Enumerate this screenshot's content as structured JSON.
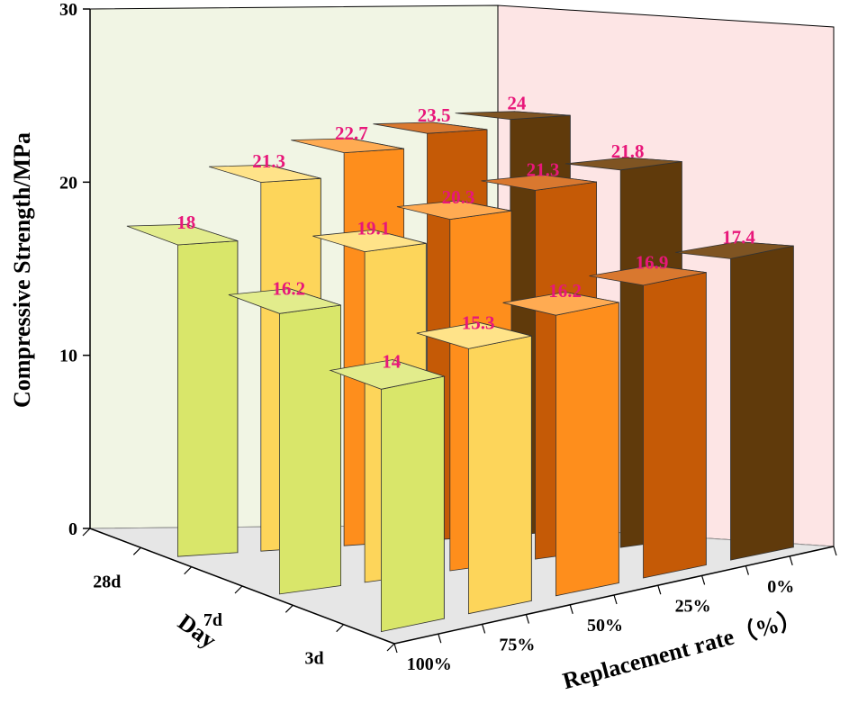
{
  "chart_data": {
    "type": "bar3d",
    "title": "",
    "zlabel": "Compressive Strength/MPa",
    "xlabel": "Replacement rate（%）",
    "ylabel": "Day",
    "zlim": [
      0,
      30
    ],
    "z_ticks": [
      "0",
      "10",
      "20",
      "30"
    ],
    "x_categories": [
      "100%",
      "75%",
      "50%",
      "25%",
      "0%"
    ],
    "y_categories": [
      "28d",
      "7d",
      "3d"
    ],
    "series": [
      {
        "name": "28d",
        "values": [
          18,
          21.3,
          22.7,
          23.5,
          24
        ],
        "labels": [
          "18",
          "21.3",
          "22.7",
          "23.5",
          "24"
        ]
      },
      {
        "name": "7d",
        "values": [
          16.2,
          19.1,
          20.3,
          21.3,
          21.8
        ],
        "labels": [
          "16.2",
          "19.1",
          "20.3",
          "21.3",
          "21.8"
        ]
      },
      {
        "name": "3d",
        "values": [
          14,
          15.3,
          16.2,
          16.9,
          17.4
        ],
        "labels": [
          "14",
          "15.3",
          "16.2",
          "16.9",
          "17.4"
        ]
      }
    ],
    "colors": [
      "#d9e66a",
      "#fdd55a",
      "#fe8e1c",
      "#c55a06",
      "#603a0b"
    ],
    "side_colors": [
      "#89944a",
      "#a8893a",
      "#b3620f",
      "#7e3a05",
      "#3f2607"
    ],
    "top_colors": [
      "#e2ec8c",
      "#ffe389",
      "#ffab52",
      "#d9782f",
      "#7f5422"
    ],
    "wall_left_color": "#f1f5e4",
    "wall_right_color": "#fde5e5",
    "floor_color": "#e6e6e6",
    "label_color": "#e8177a"
  }
}
